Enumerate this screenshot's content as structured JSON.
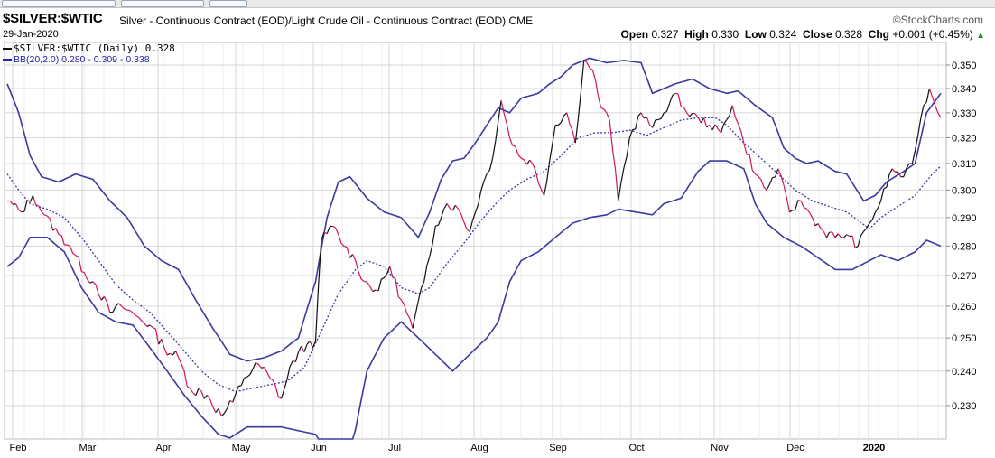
{
  "header": {
    "symbol": "$SILVER:$WTIC",
    "description": "Silver - Continuous Contract (EOD)/Light Crude Oil - Continuous Contract (EOD)",
    "exchange": "CME",
    "brand": "©StockCharts.com",
    "date": "29-Jan-2020",
    "ohlc": {
      "open_label": "Open",
      "open": "0.327",
      "high_label": "High",
      "high": "0.330",
      "low_label": "Low",
      "low": "0.324",
      "close_label": "Close",
      "close": "0.328",
      "chg_label": "Chg",
      "chg": "+0.001 (+0.45%)"
    }
  },
  "legend": {
    "price": "$SILVER:$WTIC (Daily) 0.328",
    "bb": "BB(20,2.0) 0.280 - 0.309 - 0.338"
  },
  "colors": {
    "up": "#111111",
    "down": "#d4145a",
    "band": "#3a3aa0",
    "grid": "#d6d6d6",
    "up_arrow": "#1a8c2a"
  },
  "chart_data": {
    "type": "line",
    "y_ticks": [
      "0.230",
      "0.240",
      "0.250",
      "0.260",
      "0.270",
      "0.280",
      "0.290",
      "0.300",
      "0.310",
      "0.320",
      "0.330",
      "0.340",
      "0.350"
    ],
    "ylim": [
      0.22,
      0.357
    ],
    "y_scale": "log",
    "x_months": [
      {
        "label": "Feb",
        "bold": false
      },
      {
        "label": "Mar",
        "bold": false
      },
      {
        "label": "Apr",
        "bold": false
      },
      {
        "label": "May",
        "bold": false
      },
      {
        "label": "Jun",
        "bold": false
      },
      {
        "label": "Jul",
        "bold": false
      },
      {
        "label": "Aug",
        "bold": false
      },
      {
        "label": "Sep",
        "bold": false
      },
      {
        "label": "Oct",
        "bold": false
      },
      {
        "label": "Nov",
        "bold": false
      },
      {
        "label": "Dec",
        "bold": false
      },
      {
        "label": "2020",
        "bold": true
      }
    ],
    "series": [
      {
        "name": "$SILVER:$WTIC (Daily)",
        "keypoints": [
          [
            0,
            0.296
          ],
          [
            5,
            0.292
          ],
          [
            9,
            0.298
          ],
          [
            13,
            0.291
          ],
          [
            18,
            0.284
          ],
          [
            22,
            0.28
          ],
          [
            27,
            0.271
          ],
          [
            31,
            0.267
          ],
          [
            36,
            0.258
          ],
          [
            40,
            0.26
          ],
          [
            45,
            0.257
          ],
          [
            50,
            0.254
          ],
          [
            55,
            0.247
          ],
          [
            60,
            0.244
          ],
          [
            64,
            0.235
          ],
          [
            70,
            0.233
          ],
          [
            75,
            0.227
          ],
          [
            79,
            0.231
          ],
          [
            83,
            0.238
          ],
          [
            88,
            0.242
          ],
          [
            92,
            0.238
          ],
          [
            96,
            0.232
          ],
          [
            100,
            0.243
          ],
          [
            105,
            0.248
          ],
          [
            108,
            0.249
          ],
          [
            110,
            0.282
          ],
          [
            114,
            0.287
          ],
          [
            118,
            0.28
          ],
          [
            122,
            0.275
          ],
          [
            125,
            0.268
          ],
          [
            130,
            0.265
          ],
          [
            134,
            0.273
          ],
          [
            138,
            0.262
          ],
          [
            142,
            0.253
          ],
          [
            146,
            0.268
          ],
          [
            150,
            0.287
          ],
          [
            154,
            0.295
          ],
          [
            158,
            0.293
          ],
          [
            162,
            0.285
          ],
          [
            166,
            0.3
          ],
          [
            170,
            0.312
          ],
          [
            173,
            0.335
          ],
          [
            176,
            0.32
          ],
          [
            180,
            0.312
          ],
          [
            184,
            0.31
          ],
          [
            188,
            0.298
          ],
          [
            192,
            0.325
          ],
          [
            196,
            0.33
          ],
          [
            199,
            0.318
          ],
          [
            202,
            0.352
          ],
          [
            205,
            0.348
          ],
          [
            208,
            0.332
          ],
          [
            211,
            0.327
          ],
          [
            214,
            0.296
          ],
          [
            218,
            0.32
          ],
          [
            222,
            0.33
          ],
          [
            226,
            0.324
          ],
          [
            230,
            0.33
          ],
          [
            234,
            0.338
          ],
          [
            238,
            0.33
          ],
          [
            242,
            0.328
          ],
          [
            246,
            0.325
          ],
          [
            250,
            0.322
          ],
          [
            254,
            0.333
          ],
          [
            258,
            0.318
          ],
          [
            262,
            0.306
          ],
          [
            266,
            0.3
          ],
          [
            270,
            0.308
          ],
          [
            274,
            0.292
          ],
          [
            278,
            0.296
          ],
          [
            282,
            0.29
          ],
          [
            286,
            0.285
          ],
          [
            290,
            0.283
          ],
          [
            294,
            0.284
          ],
          [
            298,
            0.28
          ],
          [
            302,
            0.288
          ],
          [
            306,
            0.296
          ],
          [
            310,
            0.308
          ],
          [
            314,
            0.305
          ],
          [
            317,
            0.31
          ],
          [
            320,
            0.328
          ],
          [
            323,
            0.34
          ],
          [
            326,
            0.33
          ],
          [
            327,
            0.328
          ]
        ]
      },
      {
        "name": "BB(20,2.0) upper",
        "keypoints": [
          [
            0,
            0.342
          ],
          [
            4,
            0.33
          ],
          [
            8,
            0.313
          ],
          [
            12,
            0.305
          ],
          [
            18,
            0.303
          ],
          [
            24,
            0.306
          ],
          [
            30,
            0.304
          ],
          [
            36,
            0.296
          ],
          [
            42,
            0.29
          ],
          [
            48,
            0.28
          ],
          [
            54,
            0.275
          ],
          [
            60,
            0.272
          ],
          [
            66,
            0.262
          ],
          [
            72,
            0.253
          ],
          [
            78,
            0.245
          ],
          [
            84,
            0.243
          ],
          [
            90,
            0.244
          ],
          [
            96,
            0.246
          ],
          [
            102,
            0.25
          ],
          [
            108,
            0.268
          ],
          [
            112,
            0.29
          ],
          [
            116,
            0.303
          ],
          [
            120,
            0.305
          ],
          [
            126,
            0.297
          ],
          [
            132,
            0.292
          ],
          [
            138,
            0.29
          ],
          [
            144,
            0.283
          ],
          [
            148,
            0.292
          ],
          [
            152,
            0.304
          ],
          [
            156,
            0.311
          ],
          [
            160,
            0.312
          ],
          [
            164,
            0.318
          ],
          [
            168,
            0.325
          ],
          [
            172,
            0.332
          ],
          [
            176,
            0.33
          ],
          [
            180,
            0.336
          ],
          [
            186,
            0.338
          ],
          [
            190,
            0.342
          ],
          [
            194,
            0.345
          ],
          [
            198,
            0.35
          ],
          [
            204,
            0.353
          ],
          [
            210,
            0.351
          ],
          [
            216,
            0.352
          ],
          [
            222,
            0.351
          ],
          [
            226,
            0.338
          ],
          [
            230,
            0.34
          ],
          [
            234,
            0.342
          ],
          [
            240,
            0.344
          ],
          [
            246,
            0.34
          ],
          [
            252,
            0.338
          ],
          [
            256,
            0.339
          ],
          [
            262,
            0.333
          ],
          [
            268,
            0.328
          ],
          [
            272,
            0.316
          ],
          [
            276,
            0.312
          ],
          [
            280,
            0.31
          ],
          [
            284,
            0.311
          ],
          [
            290,
            0.307
          ],
          [
            294,
            0.306
          ],
          [
            300,
            0.296
          ],
          [
            304,
            0.298
          ],
          [
            308,
            0.303
          ],
          [
            314,
            0.307
          ],
          [
            318,
            0.31
          ],
          [
            322,
            0.33
          ],
          [
            327,
            0.338
          ]
        ]
      },
      {
        "name": "BB(20,2.0) middle",
        "keypoints": [
          [
            0,
            0.306
          ],
          [
            4,
            0.3
          ],
          [
            8,
            0.295
          ],
          [
            14,
            0.293
          ],
          [
            20,
            0.29
          ],
          [
            26,
            0.283
          ],
          [
            32,
            0.275
          ],
          [
            38,
            0.267
          ],
          [
            44,
            0.262
          ],
          [
            50,
            0.258
          ],
          [
            56,
            0.252
          ],
          [
            62,
            0.246
          ],
          [
            68,
            0.24
          ],
          [
            74,
            0.236
          ],
          [
            80,
            0.234
          ],
          [
            86,
            0.235
          ],
          [
            92,
            0.236
          ],
          [
            98,
            0.237
          ],
          [
            104,
            0.241
          ],
          [
            110,
            0.252
          ],
          [
            116,
            0.264
          ],
          [
            122,
            0.272
          ],
          [
            126,
            0.275
          ],
          [
            132,
            0.273
          ],
          [
            138,
            0.266
          ],
          [
            144,
            0.264
          ],
          [
            148,
            0.266
          ],
          [
            154,
            0.274
          ],
          [
            160,
            0.281
          ],
          [
            166,
            0.289
          ],
          [
            172,
            0.296
          ],
          [
            176,
            0.3
          ],
          [
            182,
            0.304
          ],
          [
            188,
            0.307
          ],
          [
            194,
            0.313
          ],
          [
            200,
            0.32
          ],
          [
            206,
            0.322
          ],
          [
            212,
            0.322
          ],
          [
            218,
            0.323
          ],
          [
            224,
            0.321
          ],
          [
            230,
            0.324
          ],
          [
            236,
            0.327
          ],
          [
            242,
            0.328
          ],
          [
            248,
            0.328
          ],
          [
            252,
            0.325
          ],
          [
            258,
            0.318
          ],
          [
            264,
            0.312
          ],
          [
            270,
            0.306
          ],
          [
            276,
            0.3
          ],
          [
            282,
            0.296
          ],
          [
            288,
            0.294
          ],
          [
            294,
            0.292
          ],
          [
            298,
            0.289
          ],
          [
            302,
            0.286
          ],
          [
            306,
            0.29
          ],
          [
            312,
            0.294
          ],
          [
            318,
            0.298
          ],
          [
            324,
            0.306
          ],
          [
            327,
            0.309
          ]
        ]
      },
      {
        "name": "BB(20,2.0) lower",
        "keypoints": [
          [
            0,
            0.273
          ],
          [
            4,
            0.276
          ],
          [
            8,
            0.283
          ],
          [
            14,
            0.283
          ],
          [
            20,
            0.278
          ],
          [
            26,
            0.266
          ],
          [
            32,
            0.258
          ],
          [
            38,
            0.255
          ],
          [
            44,
            0.254
          ],
          [
            50,
            0.247
          ],
          [
            56,
            0.24
          ],
          [
            62,
            0.233
          ],
          [
            68,
            0.227
          ],
          [
            74,
            0.222
          ],
          [
            78,
            0.221
          ],
          [
            84,
            0.224
          ],
          [
            90,
            0.224
          ],
          [
            96,
            0.224
          ],
          [
            102,
            0.223
          ],
          [
            108,
            0.222
          ],
          [
            114,
            0.212
          ],
          [
            120,
            0.215
          ],
          [
            126,
            0.24
          ],
          [
            132,
            0.25
          ],
          [
            138,
            0.255
          ],
          [
            144,
            0.25
          ],
          [
            150,
            0.245
          ],
          [
            156,
            0.24
          ],
          [
            162,
            0.245
          ],
          [
            168,
            0.25
          ],
          [
            172,
            0.255
          ],
          [
            176,
            0.268
          ],
          [
            180,
            0.275
          ],
          [
            186,
            0.278
          ],
          [
            192,
            0.283
          ],
          [
            198,
            0.288
          ],
          [
            204,
            0.29
          ],
          [
            210,
            0.291
          ],
          [
            214,
            0.293
          ],
          [
            220,
            0.292
          ],
          [
            226,
            0.291
          ],
          [
            230,
            0.295
          ],
          [
            236,
            0.297
          ],
          [
            242,
            0.307
          ],
          [
            246,
            0.311
          ],
          [
            252,
            0.311
          ],
          [
            258,
            0.308
          ],
          [
            262,
            0.295
          ],
          [
            266,
            0.288
          ],
          [
            272,
            0.283
          ],
          [
            278,
            0.28
          ],
          [
            284,
            0.276
          ],
          [
            290,
            0.272
          ],
          [
            296,
            0.272
          ],
          [
            302,
            0.275
          ],
          [
            306,
            0.277
          ],
          [
            312,
            0.275
          ],
          [
            318,
            0.278
          ],
          [
            322,
            0.282
          ],
          [
            327,
            0.28
          ]
        ]
      }
    ]
  }
}
